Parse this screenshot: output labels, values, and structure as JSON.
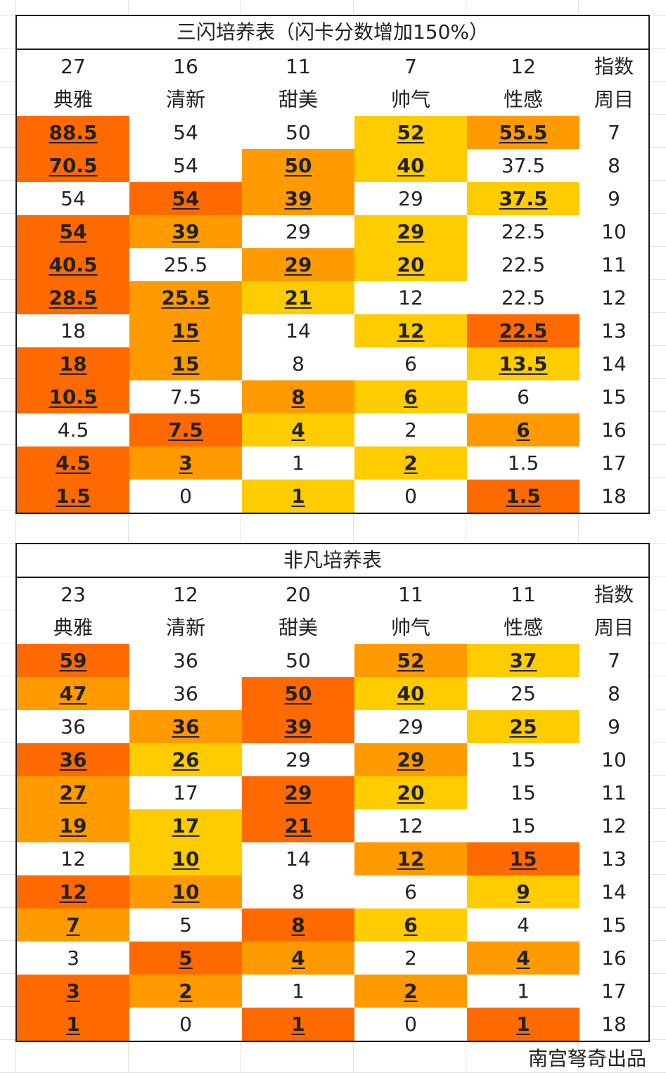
{
  "colors": {
    "dark": "#ff6a00",
    "mid": "#ff9a00",
    "light": "#ffcc00",
    "plain": "#ffffff"
  },
  "tables": [
    {
      "title": "三闪培养表（闪卡分数增加150%）",
      "index_row": [
        "27",
        "16",
        "11",
        "7",
        "12",
        "指数"
      ],
      "header_row": [
        "典雅",
        "清新",
        "甜美",
        "帅气",
        "性感",
        "周目"
      ],
      "rows": [
        [
          [
            "88.5",
            "dark",
            1
          ],
          [
            "54",
            "plain",
            0
          ],
          [
            "50",
            "plain",
            0
          ],
          [
            "52",
            "light",
            1
          ],
          [
            "55.5",
            "mid",
            1
          ],
          [
            "7",
            "plain",
            0
          ]
        ],
        [
          [
            "70.5",
            "dark",
            1
          ],
          [
            "54",
            "plain",
            0
          ],
          [
            "50",
            "mid",
            1
          ],
          [
            "40",
            "light",
            1
          ],
          [
            "37.5",
            "plain",
            0
          ],
          [
            "8",
            "plain",
            0
          ]
        ],
        [
          [
            "54",
            "plain",
            0
          ],
          [
            "54",
            "dark",
            1
          ],
          [
            "39",
            "mid",
            1
          ],
          [
            "29",
            "plain",
            0
          ],
          [
            "37.5",
            "light",
            1
          ],
          [
            "9",
            "plain",
            0
          ]
        ],
        [
          [
            "54",
            "dark",
            1
          ],
          [
            "39",
            "mid",
            1
          ],
          [
            "29",
            "plain",
            0
          ],
          [
            "29",
            "light",
            1
          ],
          [
            "22.5",
            "plain",
            0
          ],
          [
            "10",
            "plain",
            0
          ]
        ],
        [
          [
            "40.5",
            "dark",
            1
          ],
          [
            "25.5",
            "plain",
            0
          ],
          [
            "29",
            "mid",
            1
          ],
          [
            "20",
            "light",
            1
          ],
          [
            "22.5",
            "plain",
            0
          ],
          [
            "11",
            "plain",
            0
          ]
        ],
        [
          [
            "28.5",
            "dark",
            1
          ],
          [
            "25.5",
            "mid",
            1
          ],
          [
            "21",
            "light",
            1
          ],
          [
            "12",
            "plain",
            0
          ],
          [
            "22.5",
            "plain",
            0
          ],
          [
            "12",
            "plain",
            0
          ]
        ],
        [
          [
            "18",
            "plain",
            0
          ],
          [
            "15",
            "mid",
            1
          ],
          [
            "14",
            "plain",
            0
          ],
          [
            "12",
            "light",
            1
          ],
          [
            "22.5",
            "dark",
            1
          ],
          [
            "13",
            "plain",
            0
          ]
        ],
        [
          [
            "18",
            "dark",
            1
          ],
          [
            "15",
            "mid",
            1
          ],
          [
            "8",
            "plain",
            0
          ],
          [
            "6",
            "plain",
            0
          ],
          [
            "13.5",
            "light",
            1
          ],
          [
            "14",
            "plain",
            0
          ]
        ],
        [
          [
            "10.5",
            "dark",
            1
          ],
          [
            "7.5",
            "plain",
            0
          ],
          [
            "8",
            "mid",
            1
          ],
          [
            "6",
            "light",
            1
          ],
          [
            "6",
            "plain",
            0
          ],
          [
            "15",
            "plain",
            0
          ]
        ],
        [
          [
            "4.5",
            "plain",
            0
          ],
          [
            "7.5",
            "dark",
            1
          ],
          [
            "4",
            "light",
            1
          ],
          [
            "2",
            "plain",
            0
          ],
          [
            "6",
            "mid",
            1
          ],
          [
            "16",
            "plain",
            0
          ]
        ],
        [
          [
            "4.5",
            "dark",
            1
          ],
          [
            "3",
            "mid",
            1
          ],
          [
            "1",
            "plain",
            0
          ],
          [
            "2",
            "light",
            1
          ],
          [
            "1.5",
            "plain",
            0
          ],
          [
            "17",
            "plain",
            0
          ]
        ],
        [
          [
            "1.5",
            "dark",
            1
          ],
          [
            "0",
            "plain",
            0
          ],
          [
            "1",
            "light",
            1
          ],
          [
            "0",
            "plain",
            0
          ],
          [
            "1.5",
            "dark",
            1
          ],
          [
            "18",
            "plain",
            0
          ]
        ]
      ]
    },
    {
      "title": "非凡培养表",
      "index_row": [
        "23",
        "12",
        "20",
        "11",
        "11",
        "指数"
      ],
      "header_row": [
        "典雅",
        "清新",
        "甜美",
        "帅气",
        "性感",
        "周目"
      ],
      "rows": [
        [
          [
            "59",
            "dark",
            1
          ],
          [
            "36",
            "plain",
            0
          ],
          [
            "50",
            "plain",
            0
          ],
          [
            "52",
            "mid",
            1
          ],
          [
            "37",
            "light",
            1
          ],
          [
            "7",
            "plain",
            0
          ]
        ],
        [
          [
            "47",
            "mid",
            1
          ],
          [
            "36",
            "plain",
            0
          ],
          [
            "50",
            "dark",
            1
          ],
          [
            "40",
            "light",
            1
          ],
          [
            "25",
            "plain",
            0
          ],
          [
            "8",
            "plain",
            0
          ]
        ],
        [
          [
            "36",
            "plain",
            0
          ],
          [
            "36",
            "mid",
            1
          ],
          [
            "39",
            "dark",
            1
          ],
          [
            "29",
            "plain",
            0
          ],
          [
            "25",
            "light",
            1
          ],
          [
            "9",
            "plain",
            0
          ]
        ],
        [
          [
            "36",
            "dark",
            1
          ],
          [
            "26",
            "light",
            1
          ],
          [
            "29",
            "plain",
            0
          ],
          [
            "29",
            "mid",
            1
          ],
          [
            "15",
            "plain",
            0
          ],
          [
            "10",
            "plain",
            0
          ]
        ],
        [
          [
            "27",
            "mid",
            1
          ],
          [
            "17",
            "plain",
            0
          ],
          [
            "29",
            "dark",
            1
          ],
          [
            "20",
            "light",
            1
          ],
          [
            "15",
            "plain",
            0
          ],
          [
            "11",
            "plain",
            0
          ]
        ],
        [
          [
            "19",
            "mid",
            1
          ],
          [
            "17",
            "light",
            1
          ],
          [
            "21",
            "dark",
            1
          ],
          [
            "12",
            "plain",
            0
          ],
          [
            "15",
            "plain",
            0
          ],
          [
            "12",
            "plain",
            0
          ]
        ],
        [
          [
            "12",
            "plain",
            0
          ],
          [
            "10",
            "light",
            1
          ],
          [
            "14",
            "plain",
            0
          ],
          [
            "12",
            "mid",
            1
          ],
          [
            "15",
            "dark",
            1
          ],
          [
            "13",
            "plain",
            0
          ]
        ],
        [
          [
            "12",
            "dark",
            1
          ],
          [
            "10",
            "mid",
            1
          ],
          [
            "8",
            "plain",
            0
          ],
          [
            "6",
            "plain",
            0
          ],
          [
            "9",
            "light",
            1
          ],
          [
            "14",
            "plain",
            0
          ]
        ],
        [
          [
            "7",
            "mid",
            1
          ],
          [
            "5",
            "plain",
            0
          ],
          [
            "8",
            "dark",
            1
          ],
          [
            "6",
            "light",
            1
          ],
          [
            "4",
            "plain",
            0
          ],
          [
            "15",
            "plain",
            0
          ]
        ],
        [
          [
            "3",
            "plain",
            0
          ],
          [
            "5",
            "dark",
            1
          ],
          [
            "4",
            "mid",
            1
          ],
          [
            "2",
            "plain",
            0
          ],
          [
            "4",
            "mid",
            1
          ],
          [
            "16",
            "plain",
            0
          ]
        ],
        [
          [
            "3",
            "dark",
            1
          ],
          [
            "2",
            "mid",
            1
          ],
          [
            "1",
            "plain",
            0
          ],
          [
            "2",
            "mid",
            1
          ],
          [
            "1",
            "plain",
            0
          ],
          [
            "17",
            "plain",
            0
          ]
        ],
        [
          [
            "1",
            "dark",
            1
          ],
          [
            "0",
            "plain",
            0
          ],
          [
            "1",
            "dark",
            1
          ],
          [
            "0",
            "plain",
            0
          ],
          [
            "1",
            "dark",
            1
          ],
          [
            "18",
            "plain",
            0
          ]
        ]
      ]
    }
  ],
  "credit": "南宫弩奇出品"
}
